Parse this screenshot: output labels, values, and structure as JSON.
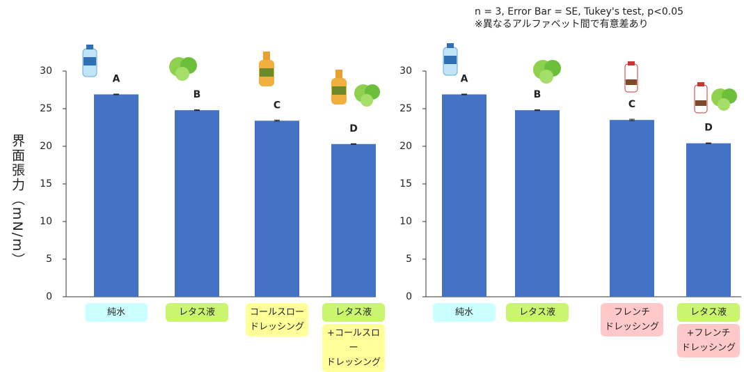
{
  "y_label": "界面張力（mN/m）",
  "note": [
    "n = 3, Error Bar = SE, Tukey's test, p<0.05",
    "※異なるアルファベット間で有意差あり"
  ],
  "chart_data": [
    {
      "type": "bar",
      "color": "#4472c4",
      "categories": [
        [
          "純水"
        ],
        [
          "レタス液"
        ],
        [
          "コールスロー\nドレッシング"
        ],
        [
          "レタス液",
          "+コールスロー\nドレッシング"
        ]
      ],
      "category_colors": [
        [
          "#ccffff"
        ],
        [
          "#c9f56f"
        ],
        [
          "#ffff99"
        ],
        [
          "#c9f56f",
          "#ffff99"
        ]
      ],
      "values": [
        26.9,
        24.8,
        23.4,
        20.3
      ],
      "errors": [
        0.05,
        0.05,
        0.08,
        0.05
      ],
      "letters": [
        "A",
        "B",
        "C",
        "D"
      ],
      "ylim": [
        0,
        30
      ],
      "yticks": [
        0,
        5,
        10,
        15,
        20,
        25,
        30
      ]
    },
    {
      "type": "bar",
      "color": "#4472c4",
      "categories": [
        [
          "純水"
        ],
        [
          "レタス液"
        ],
        [
          "フレンチ\nドレッシング"
        ],
        [
          "レタス液",
          "+フレンチ\nドレッシング"
        ]
      ],
      "category_colors": [
        [
          "#ccffff"
        ],
        [
          "#c9f56f"
        ],
        [
          "#ffc9c9"
        ],
        [
          "#c9f56f",
          "#ffc9c9"
        ]
      ],
      "values": [
        26.9,
        24.8,
        23.5,
        20.4
      ],
      "errors": [
        0.05,
        0.05,
        0.1,
        0.05
      ],
      "letters": [
        "A",
        "B",
        "C",
        "D"
      ],
      "ylim": [
        0,
        30
      ],
      "yticks": [
        0,
        5,
        10,
        15,
        20,
        25,
        30
      ]
    }
  ]
}
